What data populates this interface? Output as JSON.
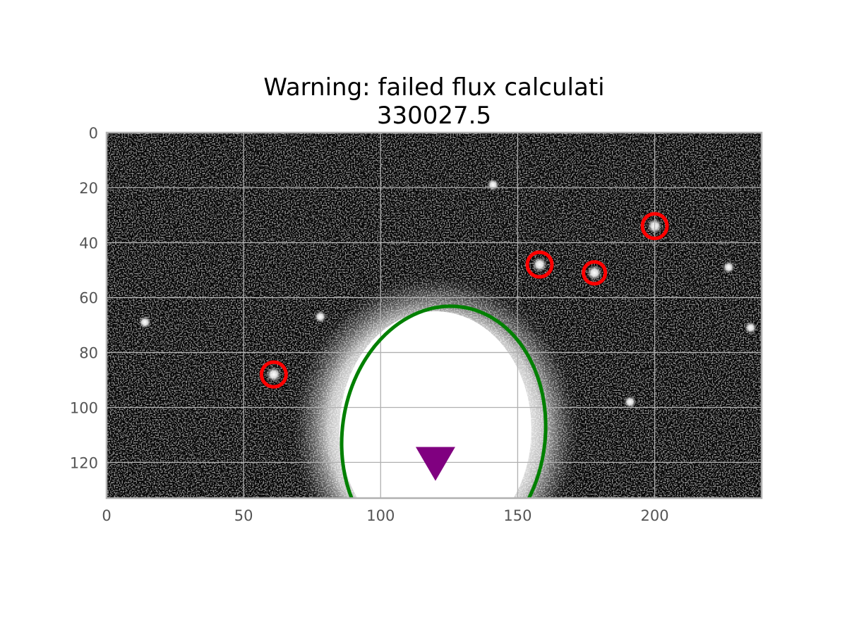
{
  "title": {
    "line1": "Warning: failed flux calculati",
    "line2": "330027.5"
  },
  "chart_data": {
    "type": "image",
    "xlim": [
      0,
      239
    ],
    "ylim": [
      133,
      0
    ],
    "y_inverted": true,
    "xticks": [
      0,
      50,
      100,
      150,
      200
    ],
    "yticks": [
      0,
      20,
      40,
      60,
      80,
      100,
      120
    ],
    "grid": true,
    "colormap": "gray",
    "background": "noisy star field with a bright saturated galaxy core",
    "bright_region": {
      "cx": 120,
      "cy": 108,
      "rx": 35,
      "ry": 43
    },
    "stars": [
      {
        "x": 141,
        "y": 19
      },
      {
        "x": 78,
        "y": 67
      },
      {
        "x": 14,
        "y": 69
      },
      {
        "x": 227,
        "y": 49
      },
      {
        "x": 235,
        "y": 71
      },
      {
        "x": 191,
        "y": 98
      }
    ],
    "circled_sources": [
      {
        "x": 61,
        "y": 88,
        "radius": 4.5
      },
      {
        "x": 158,
        "y": 48,
        "radius": 4.5
      },
      {
        "x": 178,
        "y": 51,
        "radius": 4
      },
      {
        "x": 200,
        "y": 34,
        "radius": 4.5
      }
    ],
    "ellipse": {
      "cx": 123,
      "cy": 110,
      "rx": 37,
      "ry": 47,
      "angle_deg": 8
    },
    "marker": {
      "type": "triangle-down",
      "x": 120,
      "y": 119
    },
    "colors": {
      "circles": "#ff0000",
      "ellipse": "#008000",
      "marker": "#800080",
      "grid": "#b0b0b0",
      "frame": "#b0b0b0"
    }
  }
}
